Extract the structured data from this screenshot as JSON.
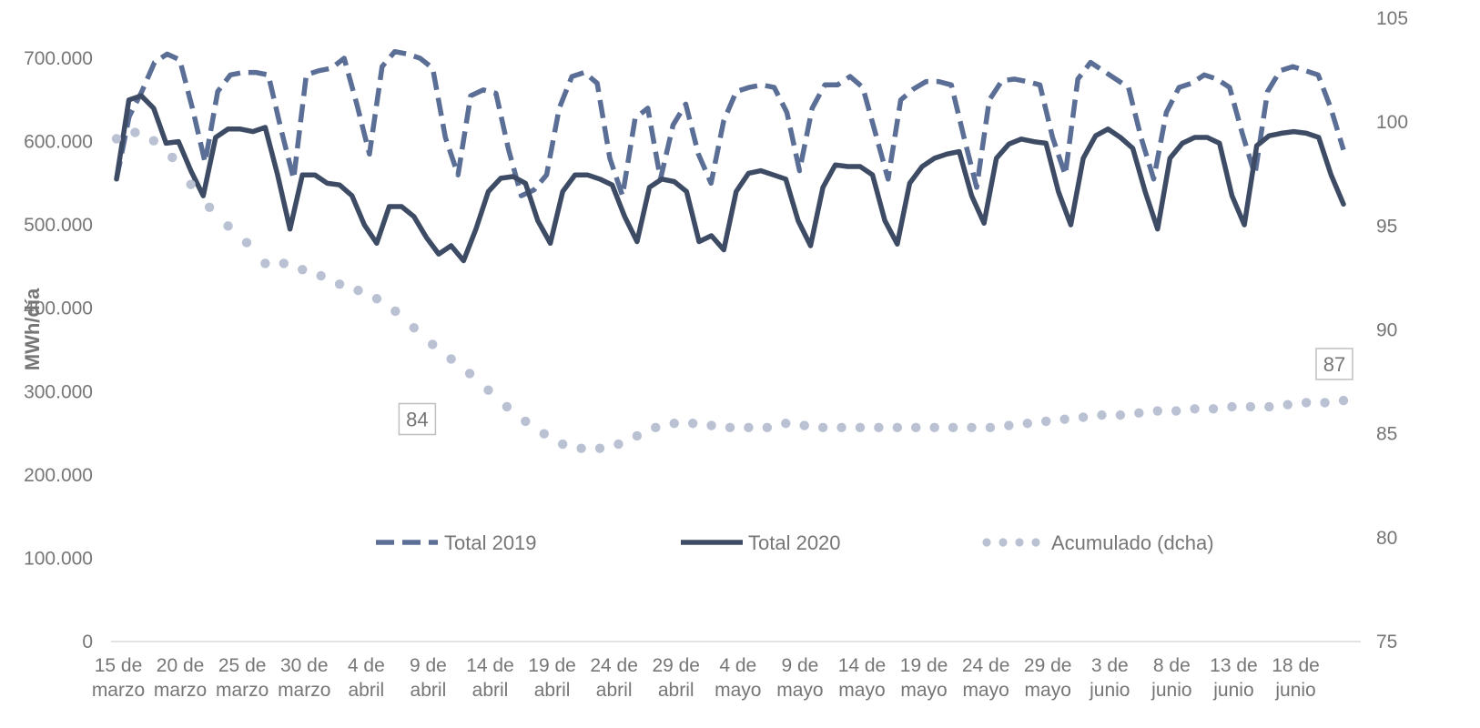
{
  "chart_data": {
    "type": "line",
    "ylabel": "MWh/día",
    "y_left": {
      "ylim": [
        0,
        700000
      ],
      "ticks": [
        "0",
        "100.000",
        "200.000",
        "300.000",
        "400.000",
        "500.000",
        "600.000",
        "700.000"
      ],
      "tick_values": [
        0,
        100000,
        200000,
        300000,
        400000,
        500000,
        600000,
        700000
      ]
    },
    "y_right": {
      "ylim": [
        75,
        105
      ],
      "ticks": [
        "75",
        "80",
        "85",
        "90",
        "95",
        "100",
        "105"
      ],
      "tick_values": [
        75,
        80,
        85,
        90,
        95,
        100,
        105
      ]
    },
    "x_ticks": [
      [
        "15 de",
        "marzo"
      ],
      [
        "20 de",
        "marzo"
      ],
      [
        "25 de",
        "marzo"
      ],
      [
        "30 de",
        "marzo"
      ],
      [
        "4 de",
        "abril"
      ],
      [
        "9 de",
        "abril"
      ],
      [
        "14 de",
        "abril"
      ],
      [
        "19 de",
        "abril"
      ],
      [
        "24 de",
        "abril"
      ],
      [
        "29 de",
        "abril"
      ],
      [
        "4 de",
        "mayo"
      ],
      [
        "9 de",
        "mayo"
      ],
      [
        "14 de",
        "mayo"
      ],
      [
        "19 de",
        "mayo"
      ],
      [
        "24 de",
        "mayo"
      ],
      [
        "29 de",
        "mayo"
      ],
      [
        "3 de",
        "junio"
      ],
      [
        "8 de",
        "junio"
      ],
      [
        "13 de",
        "junio"
      ],
      [
        "18 de",
        "junio"
      ]
    ],
    "x_tick_days": [
      0,
      5,
      10,
      15,
      20,
      25,
      30,
      35,
      40,
      45,
      50,
      55,
      60,
      65,
      70,
      75,
      80,
      85,
      90,
      95
    ],
    "x_range_days": [
      0,
      99
    ],
    "grid": false,
    "legend_position": "center",
    "series": [
      {
        "name": "Total 2019",
        "axis": "left",
        "color": "#5a6e96",
        "style": "dashed",
        "values": [
          555000,
          630000,
          660000,
          695000,
          705000,
          698000,
          640000,
          575000,
          660000,
          680000,
          683000,
          683000,
          680000,
          615000,
          555000,
          680000,
          685000,
          688000,
          700000,
          645000,
          585000,
          690000,
          708000,
          705000,
          700000,
          688000,
          605000,
          560000,
          655000,
          662000,
          658000,
          590000,
          535000,
          542000,
          560000,
          640000,
          678000,
          683000,
          670000,
          580000,
          535000,
          628000,
          640000,
          555000,
          620000,
          645000,
          585000,
          550000,
          625000,
          660000,
          665000,
          668000,
          665000,
          635000,
          565000,
          640000,
          668000,
          668000,
          678000,
          665000,
          610000,
          555000,
          650000,
          663000,
          672000,
          672000,
          668000,
          605000,
          545000,
          650000,
          673000,
          675000,
          672000,
          668000,
          605000,
          560000,
          675000,
          695000,
          685000,
          675000,
          665000,
          605000,
          555000,
          635000,
          665000,
          670000,
          680000,
          675000,
          665000,
          610000,
          560000,
          660000,
          685000,
          690000,
          685000,
          680000,
          640000,
          590000
        ]
      },
      {
        "name": "Total 2020",
        "axis": "left",
        "color": "#3d4b65",
        "style": "solid",
        "values": [
          555000,
          650000,
          655000,
          640000,
          598000,
          600000,
          565000,
          535000,
          605000,
          615000,
          615000,
          612000,
          617000,
          560000,
          495000,
          560000,
          560000,
          550000,
          548000,
          535000,
          500000,
          478000,
          522000,
          522000,
          510000,
          485000,
          465000,
          475000,
          457000,
          495000,
          540000,
          556000,
          558000,
          550000,
          505000,
          478000,
          540000,
          560000,
          560000,
          555000,
          548000,
          510000,
          480000,
          545000,
          555000,
          552000,
          540000,
          480000,
          487000,
          470000,
          540000,
          562000,
          565000,
          560000,
          555000,
          505000,
          475000,
          545000,
          572000,
          570000,
          570000,
          560000,
          505000,
          477000,
          550000,
          570000,
          580000,
          585000,
          588000,
          535000,
          502000,
          580000,
          597000,
          603000,
          600000,
          598000,
          540000,
          500000,
          580000,
          607000,
          615000,
          605000,
          592000,
          540000,
          495000,
          580000,
          598000,
          605000,
          605000,
          598000,
          535000,
          500000,
          595000,
          607000,
          610000,
          612000,
          610000,
          605000,
          560000,
          525000
        ]
      },
      {
        "name": "Acumulado (dcha)",
        "axis": "right",
        "color": "#b9c1d3",
        "style": "dotted",
        "values": [
          99.2,
          99.5,
          99.1,
          98.3,
          97.0,
          95.9,
          95.0,
          94.2,
          93.2,
          93.2,
          92.9,
          92.6,
          92.2,
          91.9,
          91.5,
          90.9,
          90.1,
          89.3,
          88.6,
          87.9,
          87.1,
          86.3,
          85.6,
          85.0,
          84.5,
          84.3,
          84.3,
          84.5,
          84.9,
          85.3,
          85.5,
          85.5,
          85.4,
          85.3,
          85.3,
          85.3,
          85.5,
          85.4,
          85.3,
          85.3,
          85.3,
          85.3,
          85.3,
          85.3,
          85.3,
          85.3,
          85.3,
          85.3,
          85.4,
          85.5,
          85.6,
          85.7,
          85.8,
          85.9,
          85.9,
          86.0,
          86.1,
          86.1,
          86.2,
          86.2,
          86.3,
          86.3,
          86.3,
          86.4,
          86.5,
          86.5,
          86.6
        ],
        "annotations": [
          {
            "x_day": 25,
            "value": 84,
            "label": "84"
          },
          {
            "x_day": 99,
            "value": 87,
            "label": "87"
          }
        ]
      }
    ]
  }
}
